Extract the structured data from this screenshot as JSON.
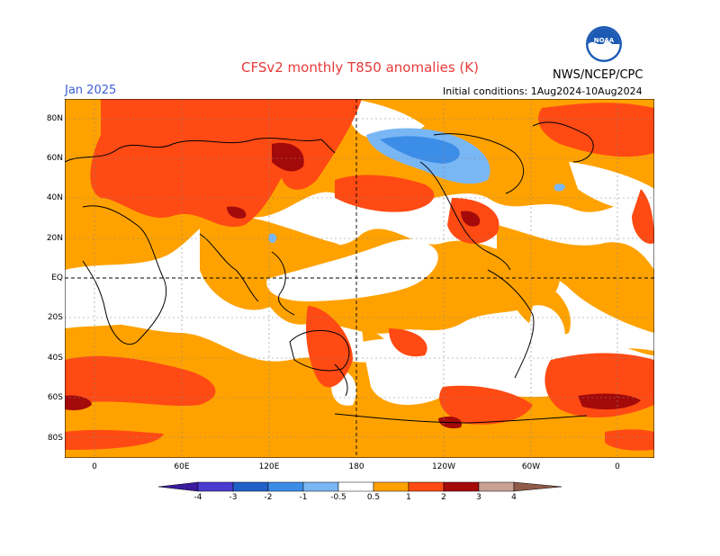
{
  "header": {
    "title": "CFSv2 monthly T850 anomalies (K)",
    "month": "Jan 2025",
    "initial_conditions": "Initial conditions: 1Aug2024-10Aug2024",
    "agency": "NWS/NCEP/CPC",
    "logo_text": "NOAA"
  },
  "map": {
    "lat_labels": [
      "80N",
      "60N",
      "40N",
      "20N",
      "EQ",
      "20S",
      "40S",
      "60S",
      "80S"
    ],
    "lon_labels": [
      "0",
      "60E",
      "120E",
      "180",
      "120W",
      "60W",
      "0"
    ]
  },
  "colorbar": {
    "labels": [
      "-4",
      "-3",
      "-2",
      "-1",
      "-0.5",
      "0.5",
      "1",
      "2",
      "3",
      "4"
    ],
    "colors": {
      "lt_-4": "#3a1c9c",
      "-4_-3": "#4b3bd0",
      "-3_-2": "#2060c8",
      "-2_-1": "#3c8de8",
      "-1_-0.5": "#79b6f4",
      "-0.5_0.5": "#ffffff",
      "0.5_1": "#ffa200",
      "1_2": "#ff4a14",
      "2_3": "#a40a0a",
      "3_4": "#c8a094",
      "gt_4": "#8f5a48"
    }
  }
}
